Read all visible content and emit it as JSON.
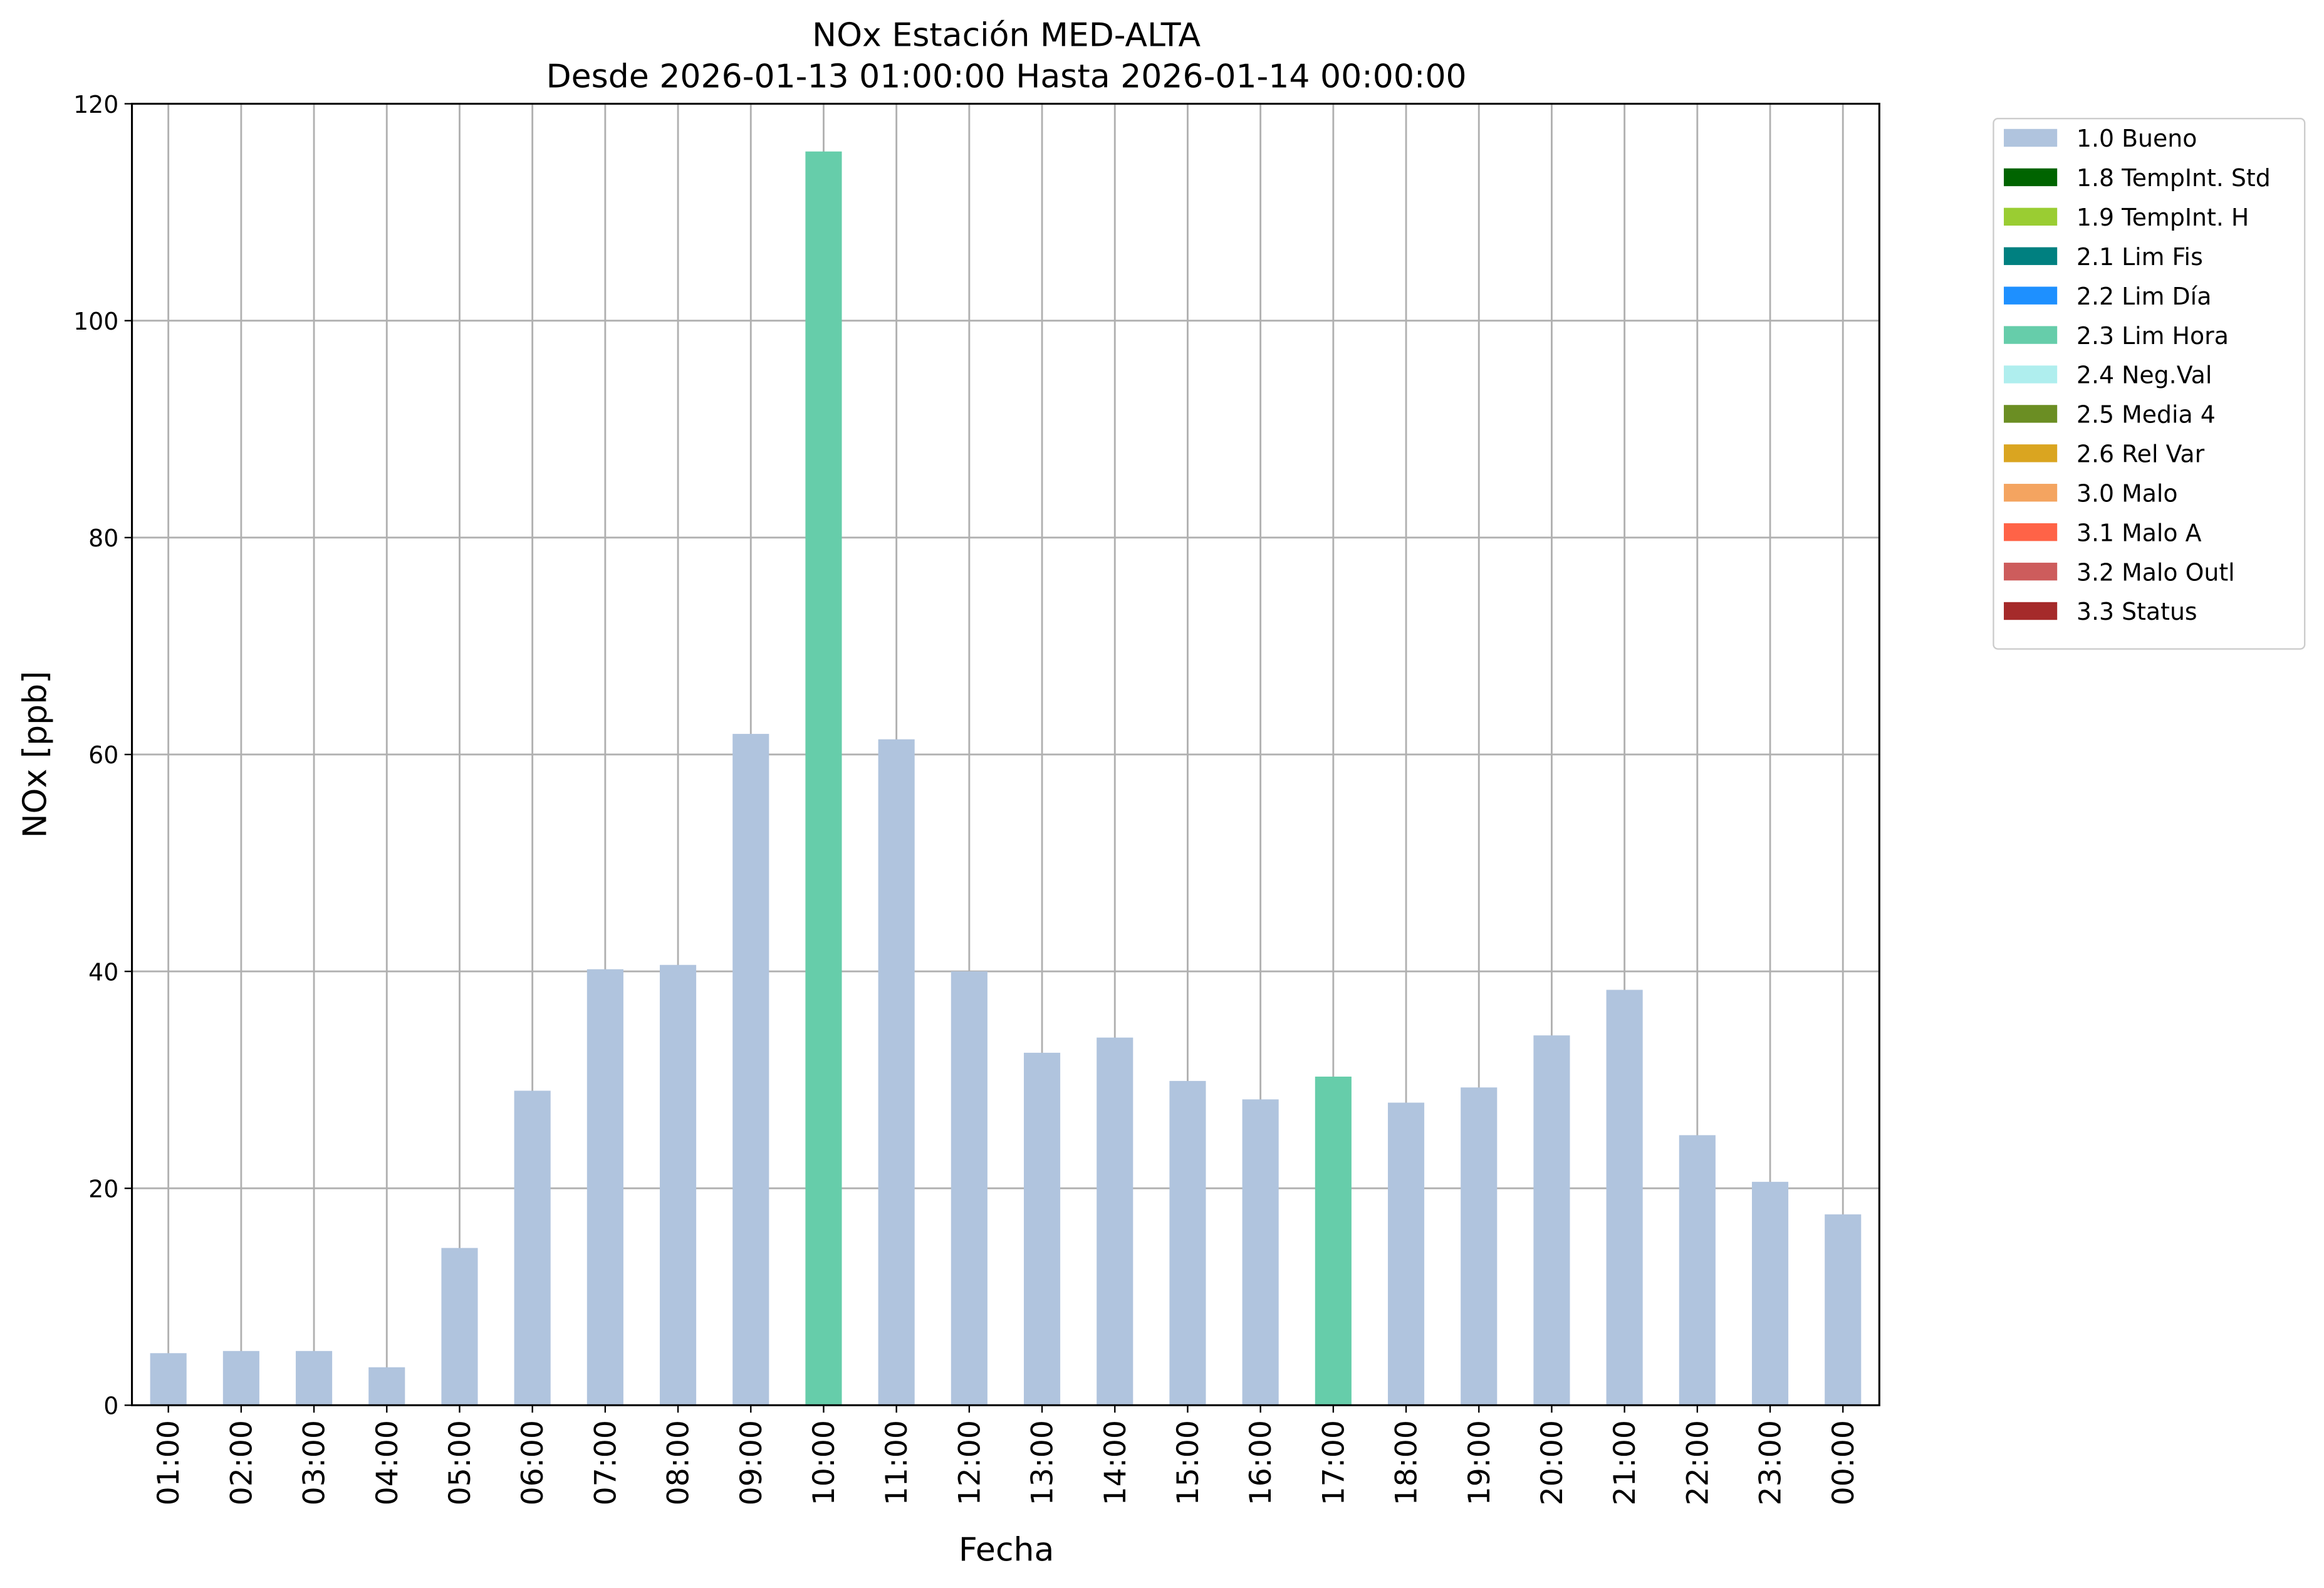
{
  "chart_data": {
    "type": "bar",
    "stacked": true,
    "title": "NOx Estación MED-ALTA",
    "subtitle": "Desde 2026-01-13 01:00:00 Hasta 2026-01-14 00:00:00",
    "x_label": "Fecha",
    "y_label": "NOx [ppb]",
    "categories": [
      "01:00",
      "02:00",
      "03:00",
      "04:00",
      "05:00",
      "06:00",
      "07:00",
      "08:00",
      "09:00",
      "10:00",
      "11:00",
      "12:00",
      "13:00",
      "14:00",
      "15:00",
      "16:00",
      "17:00",
      "18:00",
      "19:00",
      "20:00",
      "21:00",
      "22:00",
      "23:00",
      "00:00"
    ],
    "series": [
      {
        "name": "1.0 Bueno",
        "color": "#b0c4de",
        "values": [
          4.8,
          5.0,
          5.0,
          3.5,
          14.5,
          29.0,
          40.2,
          40.6,
          61.9,
          null,
          61.4,
          40.0,
          32.5,
          33.9,
          29.9,
          28.2,
          null,
          27.9,
          29.3,
          34.1,
          38.3,
          24.9,
          20.6,
          17.6
        ]
      },
      {
        "name": "1.8 TempInt. Std",
        "color": "#006400",
        "values": [
          null,
          null,
          null,
          null,
          null,
          null,
          null,
          null,
          null,
          null,
          null,
          null,
          null,
          null,
          null,
          null,
          null,
          null,
          null,
          null,
          null,
          null,
          null,
          null
        ]
      },
      {
        "name": "1.9 TempInt. H",
        "color": "#9acd32",
        "values": [
          null,
          null,
          null,
          null,
          null,
          null,
          null,
          null,
          null,
          null,
          null,
          null,
          null,
          null,
          null,
          null,
          null,
          null,
          null,
          null,
          null,
          null,
          null,
          null
        ]
      },
      {
        "name": "2.1 Lim Fis",
        "color": "#008080",
        "values": [
          null,
          null,
          null,
          null,
          null,
          null,
          null,
          null,
          null,
          null,
          null,
          null,
          null,
          null,
          null,
          null,
          null,
          null,
          null,
          null,
          null,
          null,
          null,
          null
        ]
      },
      {
        "name": "2.2 Lim Día",
        "color": "#1e90ff",
        "values": [
          null,
          null,
          null,
          null,
          null,
          null,
          null,
          null,
          null,
          null,
          null,
          null,
          null,
          null,
          null,
          null,
          null,
          null,
          null,
          null,
          null,
          null,
          null,
          null
        ]
      },
      {
        "name": "2.3 Lim Hora",
        "color": "#66cdaa",
        "values": [
          null,
          null,
          null,
          null,
          null,
          null,
          null,
          null,
          null,
          115.6,
          null,
          null,
          null,
          null,
          null,
          null,
          30.3,
          null,
          null,
          null,
          null,
          null,
          null,
          null
        ]
      },
      {
        "name": "2.4 Neg.Val",
        "color": "#afeeee",
        "values": [
          null,
          null,
          null,
          null,
          null,
          null,
          null,
          null,
          null,
          null,
          null,
          null,
          null,
          null,
          null,
          null,
          null,
          null,
          null,
          null,
          null,
          null,
          null,
          null
        ]
      },
      {
        "name": "2.5 Media 4",
        "color": "#6b8e23",
        "values": [
          null,
          null,
          null,
          null,
          null,
          null,
          null,
          null,
          null,
          null,
          null,
          null,
          null,
          null,
          null,
          null,
          null,
          null,
          null,
          null,
          null,
          null,
          null,
          null
        ]
      },
      {
        "name": "2.6 Rel Var",
        "color": "#daa520",
        "values": [
          null,
          null,
          null,
          null,
          null,
          null,
          null,
          null,
          null,
          null,
          null,
          null,
          null,
          null,
          null,
          null,
          null,
          null,
          null,
          null,
          null,
          null,
          null,
          null
        ]
      },
      {
        "name": "3.0 Malo",
        "color": "#f4a460",
        "values": [
          null,
          null,
          null,
          null,
          null,
          null,
          null,
          null,
          null,
          null,
          null,
          null,
          null,
          null,
          null,
          null,
          null,
          null,
          null,
          null,
          null,
          null,
          null,
          null
        ]
      },
      {
        "name": "3.1 Malo A",
        "color": "#ff6347",
        "values": [
          null,
          null,
          null,
          null,
          null,
          null,
          null,
          null,
          null,
          null,
          null,
          null,
          null,
          null,
          null,
          null,
          null,
          null,
          null,
          null,
          null,
          null,
          null,
          null
        ]
      },
      {
        "name": "3.2 Malo Outl",
        "color": "#cd5c5c",
        "values": [
          null,
          null,
          null,
          null,
          null,
          null,
          null,
          null,
          null,
          null,
          null,
          null,
          null,
          null,
          null,
          null,
          null,
          null,
          null,
          null,
          null,
          null,
          null,
          null
        ]
      },
      {
        "name": "3.3 Status",
        "color": "#a52a2a",
        "values": [
          null,
          null,
          null,
          null,
          null,
          null,
          null,
          null,
          null,
          null,
          null,
          null,
          null,
          null,
          null,
          null,
          null,
          null,
          null,
          null,
          null,
          null,
          null,
          null
        ]
      }
    ],
    "ylim": [
      0,
      120
    ],
    "yticks": [
      0,
      20,
      40,
      60,
      80,
      100,
      120
    ],
    "grid": true,
    "legend": "outside-right"
  }
}
